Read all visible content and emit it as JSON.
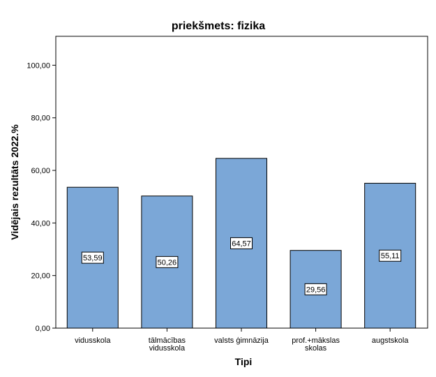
{
  "chart_data": {
    "type": "bar",
    "title": "priekšmets: fizika",
    "xlabel": "Tipi",
    "ylabel": "Vidējais rezultāts 2022.%",
    "categories": [
      [
        "vidusskola"
      ],
      [
        "tālmācības",
        "vidusskola"
      ],
      [
        "valsts ģimnāzija"
      ],
      [
        "prof.+mākslas",
        "skolas"
      ],
      [
        "augstskola"
      ]
    ],
    "values": [
      53.59,
      50.26,
      64.57,
      29.56,
      55.11
    ],
    "value_labels": [
      "53,59",
      "50,26",
      "64,57",
      "29,56",
      "55,11"
    ],
    "yticks": [
      0,
      20,
      40,
      60,
      80,
      100
    ],
    "ytick_labels": [
      "0,00",
      "20,00",
      "40,00",
      "60,00",
      "80,00",
      "100,00"
    ],
    "ylim": [
      0,
      111
    ],
    "grid": false,
    "colors": {
      "bar": "#7ba7d7",
      "bar_stroke": "#000000",
      "frame": "#000000",
      "label_box": "#ffffff"
    }
  }
}
